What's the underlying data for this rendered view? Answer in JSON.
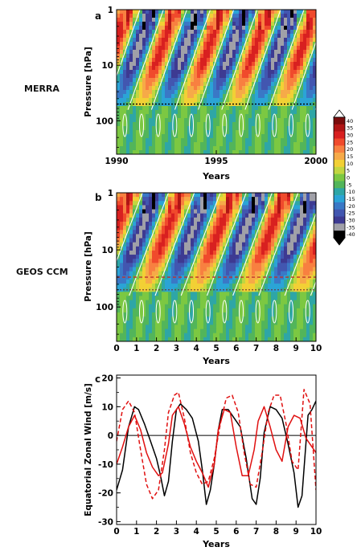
{
  "figure": {
    "row_labels": [
      "MERRA",
      "GEOS CCM"
    ],
    "panel_letters": [
      "a",
      "b",
      "c"
    ]
  },
  "colors": {
    "observed": "#000000",
    "model_solid": "#e01010",
    "model_dashed": "#e01010",
    "contour": "#ffffff",
    "marker_a": "#000000",
    "marker_b_top": "#c0302a",
    "marker_b_bottom": "#6a3030"
  },
  "chart_data": [
    {
      "id": "a",
      "type": "heatmap",
      "title": "",
      "xlabel": "Years",
      "ylabel": "Pressure [hPa]",
      "x_ticks": [
        "1990",
        "1995",
        "2000"
      ],
      "xlim": [
        1990,
        2000
      ],
      "y_scale": "log",
      "y_ticks": [
        "1",
        "10",
        "100"
      ],
      "ylim": [
        400,
        1
      ],
      "qbo_period_years": 2.35,
      "marker_pressure_hPa": 50
    },
    {
      "id": "b",
      "type": "heatmap",
      "title": "",
      "xlabel": "Years",
      "ylabel": "Pressure [hPa]",
      "x_ticks": [
        "0",
        "1",
        "2",
        "3",
        "4",
        "5",
        "6",
        "7",
        "8",
        "9",
        "10"
      ],
      "xlim": [
        0,
        10
      ],
      "y_scale": "log",
      "y_ticks": [
        "1",
        "10",
        "100"
      ],
      "ylim": [
        400,
        1
      ],
      "qbo_period_years": 2.6,
      "marker_pressures_hPa": [
        30,
        50
      ]
    },
    {
      "id": "colorbar",
      "type": "colorbar",
      "levels": [
        "40",
        "35",
        "30",
        "25",
        "20",
        "15",
        "10",
        "5",
        "0",
        "-5",
        "-10",
        "-15",
        "-20",
        "-25",
        "-30",
        "-35",
        "-40"
      ],
      "colors": [
        "#7a0c0c",
        "#b01515",
        "#d82020",
        "#f04a2c",
        "#f88040",
        "#f6aa48",
        "#f2d035",
        "#c2d640",
        "#7cc842",
        "#52b55a",
        "#2ea6a6",
        "#2ba4d6",
        "#3a78c6",
        "#4256b0",
        "#3d3a92",
        "#a0a0a8",
        "#000000"
      ]
    },
    {
      "id": "c",
      "type": "line",
      "title": "",
      "xlabel": "Years",
      "ylabel": "Equatorial Zonal Wind [m/s]",
      "xlim": [
        0,
        10
      ],
      "ylim": [
        -31,
        21
      ],
      "x_ticks": [
        "0",
        "1",
        "2",
        "3",
        "4",
        "5",
        "6",
        "7",
        "8",
        "9",
        "10"
      ],
      "y_ticks": [
        "20",
        "10",
        "0",
        "-10",
        "-20",
        "-30"
      ],
      "zero_line": true,
      "series": [
        {
          "style": "solid-black",
          "x": [
            0,
            0.3,
            0.6,
            0.9,
            1.1,
            1.4,
            1.7,
            2.0,
            2.2,
            2.4,
            2.6,
            2.8,
            3.0,
            3.2,
            3.5,
            3.8,
            4.1,
            4.3,
            4.5,
            4.7,
            4.9,
            5.1,
            5.3,
            5.6,
            5.9,
            6.2,
            6.5,
            6.8,
            7.0,
            7.2,
            7.4,
            7.7,
            8.0,
            8.3,
            8.6,
            8.9,
            9.1,
            9.3,
            9.6,
            9.8,
            10.0
          ],
          "y": [
            -19,
            -12,
            3,
            10,
            9,
            4,
            -2,
            -8,
            -14,
            -21,
            -16,
            -2,
            9,
            11,
            9,
            6,
            -2,
            -12,
            -24,
            -19,
            -10,
            2,
            9,
            9,
            6,
            3,
            -8,
            -22,
            -24,
            -15,
            1,
            10,
            9,
            6,
            -3,
            -13,
            -25,
            -21,
            7,
            9,
            12
          ]
        },
        {
          "style": "solid-red",
          "x": [
            0,
            0.3,
            0.6,
            0.9,
            1.2,
            1.5,
            1.8,
            2.1,
            2.3,
            2.6,
            2.8,
            3.1,
            3.4,
            3.7,
            4.0,
            4.3,
            4.6,
            4.9,
            5.1,
            5.4,
            5.7,
            6.0,
            6.3,
            6.6,
            6.9,
            7.1,
            7.4,
            7.7,
            8.0,
            8.3,
            8.6,
            8.9,
            9.2,
            9.5,
            9.8,
            10.0
          ],
          "y": [
            -10,
            -4,
            3,
            7,
            2,
            -6,
            -11,
            -14,
            -13,
            -3,
            7,
            10,
            4,
            -4,
            -9,
            -13,
            -18,
            -10,
            2,
            9,
            8,
            -4,
            -14,
            -14,
            -5,
            5,
            10,
            3,
            -5,
            -9,
            3,
            7,
            6,
            -1,
            -4,
            -6
          ]
        },
        {
          "style": "dashed-red",
          "x": [
            0,
            0.3,
            0.6,
            0.9,
            1.2,
            1.5,
            1.8,
            2.1,
            2.4,
            2.6,
            2.9,
            3.1,
            3.4,
            3.7,
            4.0,
            4.3,
            4.6,
            4.9,
            5.2,
            5.5,
            5.8,
            6.1,
            6.4,
            6.7,
            7.0,
            7.3,
            7.6,
            7.9,
            8.2,
            8.5,
            8.8,
            9.1,
            9.4,
            9.7,
            10.0
          ],
          "y": [
            -2,
            9,
            12,
            8,
            -5,
            -17,
            -22,
            -19,
            -5,
            8,
            14,
            15,
            6,
            -6,
            -13,
            -17,
            -16,
            -8,
            4,
            13,
            14,
            8,
            -6,
            -17,
            -18,
            -6,
            8,
            14,
            14,
            4,
            -9,
            -12,
            16,
            11,
            -19
          ]
        }
      ]
    }
  ]
}
